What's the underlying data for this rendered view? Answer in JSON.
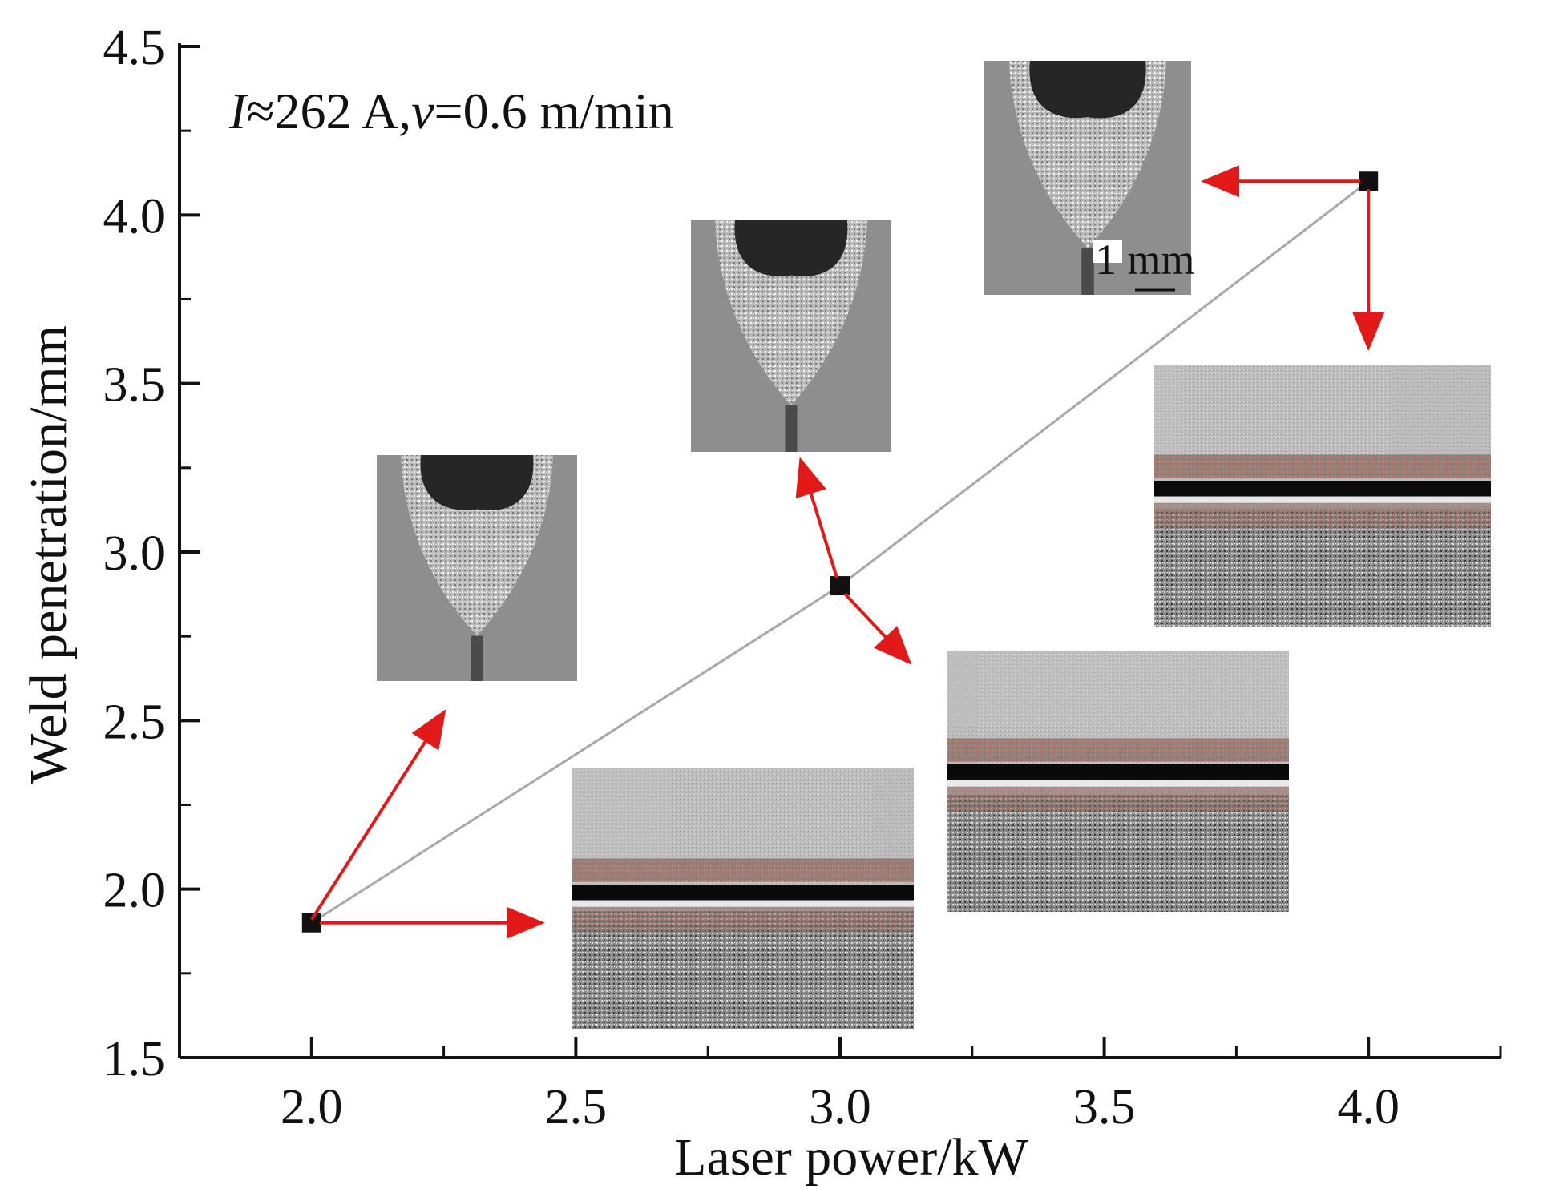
{
  "chart_data": {
    "type": "line",
    "xlabel": "Laser power/kW",
    "ylabel": "Weld penetration/mm",
    "xlim": [
      1.75,
      4.25
    ],
    "ylim": [
      1.5,
      4.5
    ],
    "x_ticks": [
      "2.0",
      "2.5",
      "3.0",
      "3.5",
      "4.0"
    ],
    "y_ticks": [
      "1.5",
      "2.0",
      "2.5",
      "3.0",
      "3.5",
      "4.0",
      "4.5"
    ],
    "grid": false,
    "series": [
      {
        "x": [
          2.0,
          3.0,
          4.0
        ],
        "y": [
          1.9,
          2.9,
          4.1
        ]
      }
    ],
    "condition": {
      "current_symbol": "I",
      "current_text": "≈262 A,",
      "speed_symbol": "v",
      "speed_text": "=0.6 m/min"
    },
    "scale_bar_label": "1 mm",
    "insets": [
      {
        "kind": "cross-section",
        "power_kW": 2.0,
        "penetration_mm": 1.9
      },
      {
        "kind": "weld-surface",
        "power_kW": 2.0,
        "penetration_mm": 1.9
      },
      {
        "kind": "cross-section",
        "power_kW": 3.0,
        "penetration_mm": 2.9
      },
      {
        "kind": "weld-surface",
        "power_kW": 3.0,
        "penetration_mm": 2.9
      },
      {
        "kind": "cross-section",
        "power_kW": 4.0,
        "penetration_mm": 4.1
      },
      {
        "kind": "weld-surface",
        "power_kW": 4.0,
        "penetration_mm": 4.1
      }
    ],
    "colors": {
      "line": "#a8a8a8",
      "marker": "#111111",
      "arrow": "#e11919",
      "axis": "#111111"
    }
  }
}
